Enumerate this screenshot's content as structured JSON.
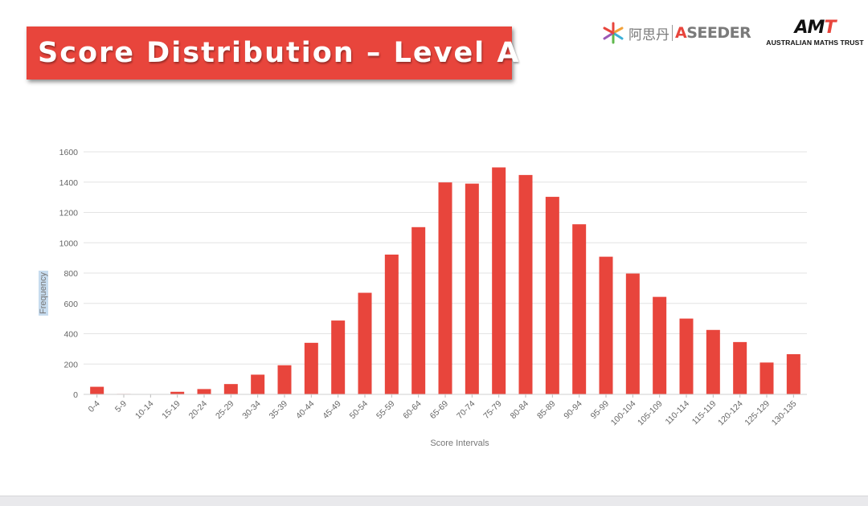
{
  "header": {
    "title": "Score Distribution – Level A",
    "logo_aseeder_cn": "阿思丹",
    "logo_aseeder_en_a": "A",
    "logo_aseeder_en_rest": "SEEDER",
    "logo_amt_mark_a": "AM",
    "logo_amt_mark_t": "T",
    "logo_amt_sub": "AUSTRALIAN MATHS TRUST"
  },
  "colors": {
    "bar": "#e8453c",
    "grid": "#e3e3e3",
    "accent": "#e8453c"
  },
  "chart_data": {
    "type": "bar",
    "title": "",
    "xlabel": "Score Intervals",
    "ylabel": "Frequency",
    "ylim": [
      0,
      1600
    ],
    "yticks": [
      0,
      200,
      400,
      600,
      800,
      1000,
      1200,
      1400,
      1600
    ],
    "grid": true,
    "categories": [
      "0-4",
      "5-9",
      "10-14",
      "15-19",
      "20-24",
      "25-29",
      "30-34",
      "35-39",
      "40-44",
      "45-49",
      "50-54",
      "55-59",
      "60-64",
      "65-69",
      "70-74",
      "75-79",
      "80-84",
      "85-89",
      "90-94",
      "95-99",
      "100-104",
      "105-109",
      "110-114",
      "115-119",
      "120-124",
      "125-129",
      "130-135"
    ],
    "values": [
      50,
      3,
      2,
      17,
      35,
      68,
      130,
      192,
      340,
      487,
      670,
      922,
      1103,
      1398,
      1390,
      1497,
      1447,
      1303,
      1122,
      908,
      797,
      643,
      500,
      425,
      345,
      210,
      265
    ]
  }
}
